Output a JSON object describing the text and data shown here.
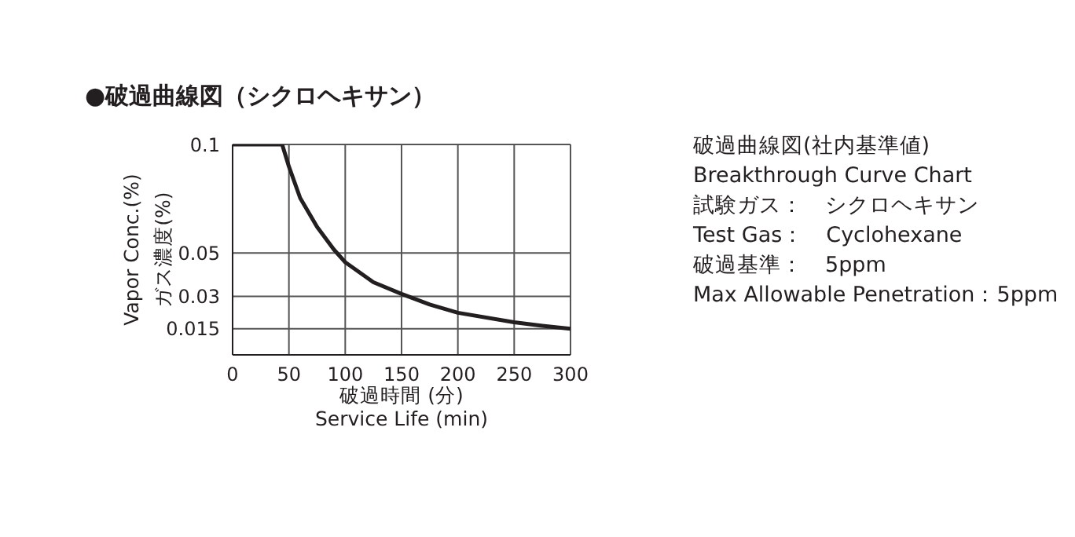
{
  "chart_data": {
    "type": "line",
    "title": "●破過曲線図（シクロヘキサン）",
    "xlabel": "破過時間 (分)\nService Life (min)",
    "ylabel": "Vapor Conc.(%)\nガス濃度(%)",
    "x": [
      0,
      44,
      50,
      60,
      75,
      90,
      100,
      125,
      150,
      175,
      200,
      250,
      275,
      300
    ],
    "series": [
      {
        "color": "#231f20",
        "values": [
          0.1,
          0.1,
          0.0898,
          0.0753,
          0.062,
          0.0515,
          0.0457,
          0.0365,
          0.0311,
          0.0262,
          0.0224,
          0.018,
          0.0164,
          0.015
        ]
      }
    ],
    "xlim": [
      0,
      300
    ],
    "xticks": [
      0,
      50,
      100,
      150,
      200,
      250,
      300
    ],
    "ylim": [
      0.003,
      0.1
    ],
    "yticks": [
      0.015,
      0.03,
      0.05,
      0.1
    ],
    "grid": true,
    "marker": "none",
    "line_style": "solid",
    "annotations": [
      "破過曲線図(社内基準値)",
      "Breakthrough Curve Chart",
      "試験ガス：　シクロヘキサン",
      "Test Gas：　Cyclohexane",
      "破過基準：　5ppm",
      "Max Allowable Penetration：5ppm"
    ]
  }
}
